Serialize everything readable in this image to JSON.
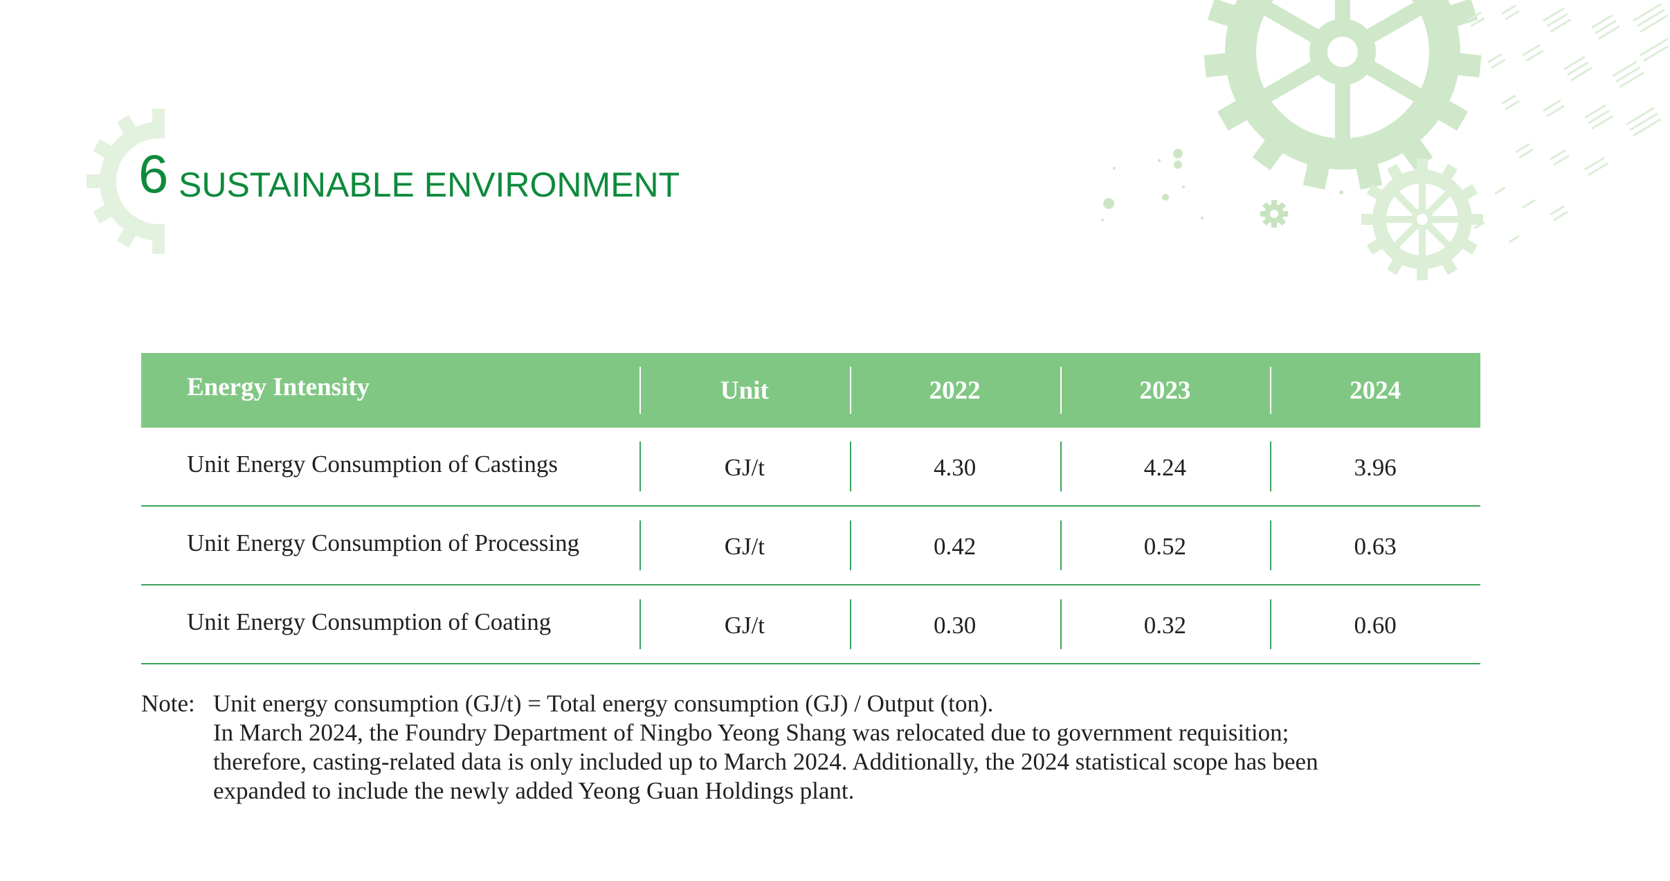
{
  "section": {
    "number": "6",
    "title": "SUSTAINABLE ENVIRONMENT"
  },
  "table": {
    "headers": [
      "Energy Intensity",
      "Unit",
      "2022",
      "2023",
      "2024"
    ],
    "rows": [
      [
        "Unit Energy Consumption of Castings",
        "GJ/t",
        "4.30",
        "4.24",
        "3.96"
      ],
      [
        "Unit Energy Consumption of Processing",
        "GJ/t",
        "0.42",
        "0.52",
        "0.63"
      ],
      [
        "Unit Energy Consumption of Coating",
        "GJ/t",
        "0.30",
        "0.32",
        "0.60"
      ]
    ]
  },
  "note": {
    "label": "Note:",
    "lines": [
      "Unit energy consumption (GJ/t) = Total energy consumption (GJ) / Output (ton).",
      "In March 2024, the Foundry Department of Ningbo Yeong Shang was relocated due to government requisition;",
      "therefore, casting-related data is only included up to March 2024. Additionally, the 2024 statistical scope has been",
      "expanded to include the newly added Yeong Guan Holdings plant."
    ]
  },
  "colors": {
    "brand_green": "#0e8a3c",
    "header_green": "#81c784",
    "rule_green": "#3aa35a",
    "decor_green": "#cfe8c9"
  },
  "decor_icons": [
    "gear-icon",
    "gear-icon",
    "gear-icon",
    "gear-icon"
  ]
}
